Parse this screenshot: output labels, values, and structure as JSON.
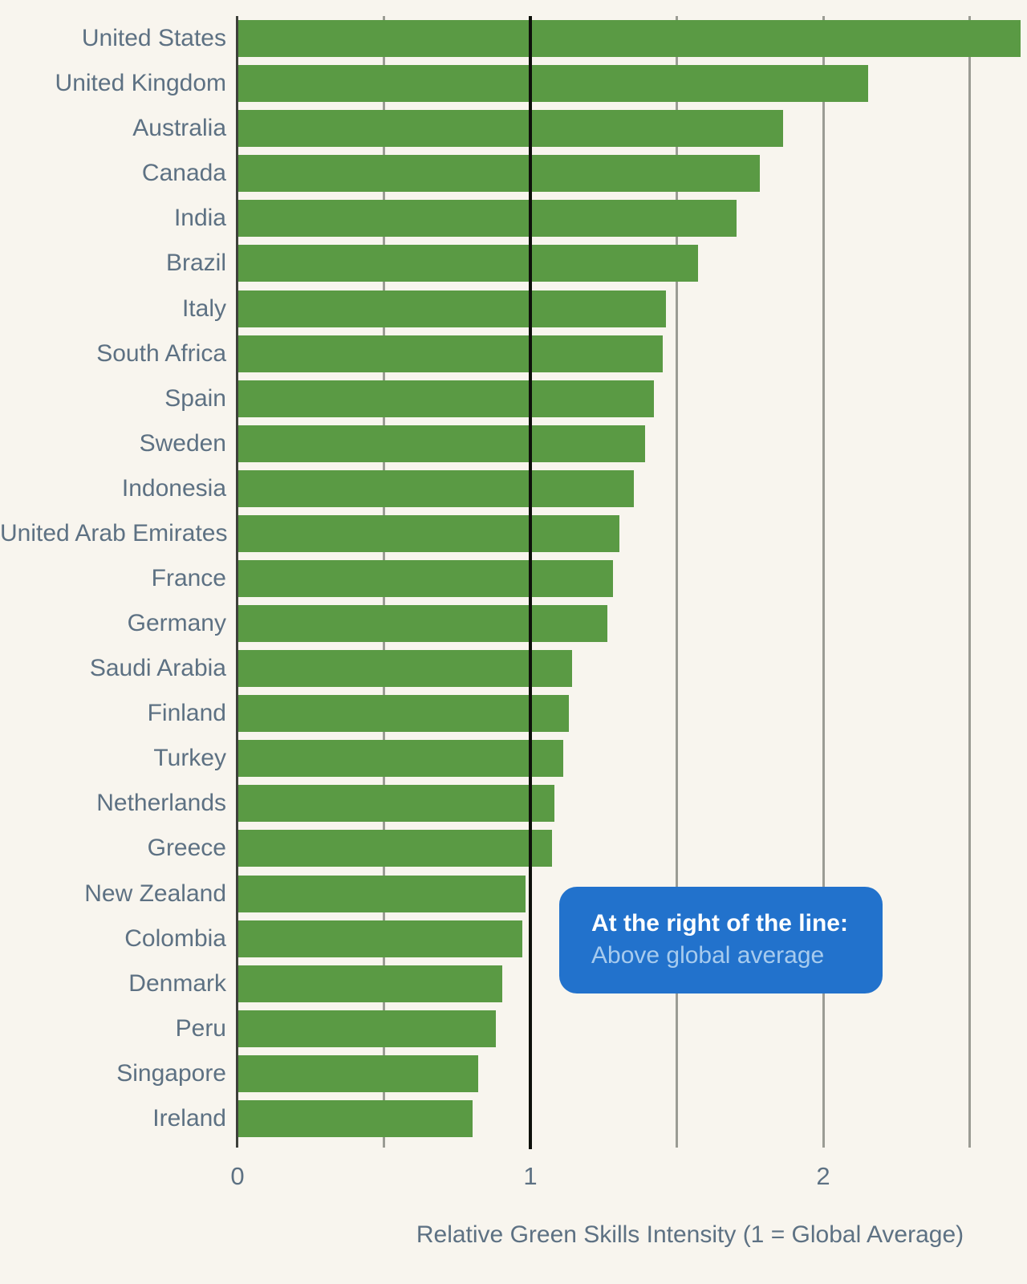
{
  "chart_data": {
    "type": "bar",
    "orientation": "horizontal",
    "title": "",
    "xlabel": "Relative Green Skills Intensity (1 = Global Average)",
    "ylabel": "",
    "categories": [
      "United States",
      "United Kingdom",
      "Australia",
      "Canada",
      "India",
      "Brazil",
      "Italy",
      "South Africa",
      "Spain",
      "Sweden",
      "Indonesia",
      "United Arab Emirates",
      "France",
      "Germany",
      "Saudi Arabia",
      "Finland",
      "Turkey",
      "Netherlands",
      "Greece",
      "New Zealand",
      "Colombia",
      "Denmark",
      "Peru",
      "Singapore",
      "Ireland"
    ],
    "values": [
      2.67,
      2.15,
      1.86,
      1.78,
      1.7,
      1.57,
      1.46,
      1.45,
      1.42,
      1.39,
      1.35,
      1.3,
      1.28,
      1.26,
      1.14,
      1.13,
      1.11,
      1.08,
      1.07,
      0.98,
      0.97,
      0.9,
      0.88,
      0.82,
      0.8
    ],
    "xlim": [
      0,
      2.7
    ],
    "x_ticks": [
      0,
      1,
      2
    ],
    "gridlines": [
      0.5,
      1.5,
      2,
      2.5
    ],
    "reference_line": 1,
    "grid": "on",
    "legend": "none"
  },
  "annotation": {
    "title": "At the right of the line:",
    "subtitle": "Above global average"
  },
  "colors": {
    "background": "#F8F5EE",
    "bar": "#5A9A44",
    "label": "#5D7183",
    "grid": "#9B9C94",
    "axis_spine": "#3E403A",
    "reference_line": "#0E100B",
    "callout_bg": "#2272CC",
    "callout_title": "#FFFFFF",
    "callout_subtitle": "#A7CBEE"
  }
}
